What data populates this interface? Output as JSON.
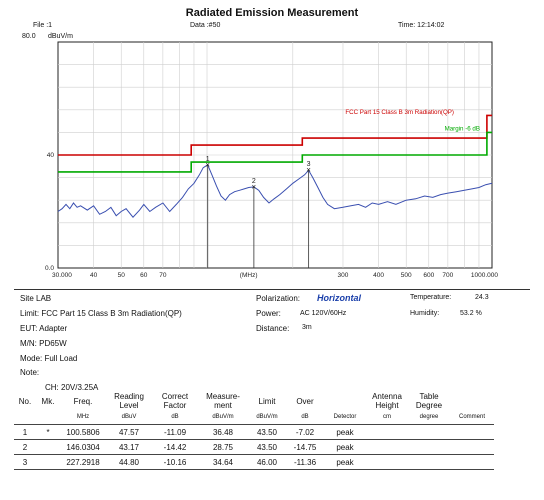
{
  "header": {
    "title": "Radiated Emission Measurement",
    "file": "File :1",
    "data": "Data :#50",
    "time": "Time: 12:14:02",
    "ytop": "80.0",
    "yunit": "dBuV/m"
  },
  "chart_data": {
    "type": "line",
    "title": "Radiated Emission Measurement",
    "xlabel": "(MHz)",
    "ylabel": "dBuV/m",
    "xscale": "log",
    "xlim": [
      30,
      1000
    ],
    "ylim": [
      0,
      80
    ],
    "ytick_labels": [
      "0.0",
      "40",
      "80.0"
    ],
    "xtick_labels": [
      "30.000",
      "40",
      "50",
      "60",
      "70",
      "(MHz)",
      "300",
      "400",
      "500",
      "600",
      "700",
      "1000.000"
    ],
    "xtick_values": [
      30,
      40,
      50,
      60,
      70,
      140,
      300,
      400,
      500,
      600,
      700,
      1000
    ],
    "limit_line": {
      "name": "FCC Part 15  Class B 3m Radiation(QP)",
      "color": "#cc0000",
      "points": [
        [
          30,
          40
        ],
        [
          88,
          40
        ],
        [
          88,
          43.5
        ],
        [
          216,
          43.5
        ],
        [
          216,
          46
        ],
        [
          960,
          46
        ],
        [
          960,
          54
        ],
        [
          1000,
          54
        ]
      ]
    },
    "margin_line": {
      "name": "Margin -6 dB",
      "color": "#00aa00",
      "points": [
        [
          30,
          34
        ],
        [
          88,
          34
        ],
        [
          88,
          37.5
        ],
        [
          216,
          37.5
        ],
        [
          216,
          40
        ],
        [
          960,
          40
        ],
        [
          960,
          48
        ],
        [
          1000,
          48
        ]
      ]
    },
    "trace": {
      "color": "#3a4fb0",
      "x": [
        30,
        31,
        32,
        33,
        34,
        35,
        36,
        38,
        40,
        42,
        44,
        46,
        48,
        50,
        52,
        55,
        58,
        60,
        63,
        66,
        70,
        74,
        78,
        82,
        86,
        90,
        94,
        97,
        100.58,
        104,
        108,
        112,
        116,
        120,
        125,
        130,
        135,
        140,
        146.03,
        152,
        158,
        165,
        172,
        180,
        190,
        200,
        210,
        220,
        227.29,
        235,
        245,
        255,
        265,
        280,
        300,
        320,
        340,
        360,
        380,
        400,
        430,
        460,
        500,
        540,
        580,
        620,
        660,
        700,
        750,
        800,
        850,
        900,
        950,
        1000
      ],
      "y": [
        20,
        21,
        22.5,
        21,
        23,
        21.5,
        22,
        20.5,
        22,
        19,
        20,
        21.5,
        18.5,
        20,
        21,
        18,
        20.5,
        22.5,
        20,
        21.5,
        23,
        20,
        22.5,
        25,
        28,
        30,
        33,
        35.5,
        36.5,
        33,
        29,
        25.5,
        24,
        26,
        27,
        27.5,
        28,
        28.5,
        28.7,
        27.5,
        25,
        23,
        24.5,
        26,
        28,
        30,
        31.5,
        33,
        34.6,
        32,
        28.5,
        25,
        22.5,
        21,
        21.5,
        22,
        22.5,
        21.5,
        23,
        22.5,
        23.5,
        22.5,
        24,
        24.5,
        25.5,
        25,
        26,
        26.5,
        27,
        27.5,
        28,
        28.5,
        29.5,
        30
      ]
    },
    "markers": [
      {
        "label": "1",
        "x": 100.5806,
        "y": 36.48
      },
      {
        "label": "2",
        "x": 146.0304,
        "y": 28.75
      },
      {
        "label": "3",
        "x": 227.2918,
        "y": 34.64
      }
    ],
    "grid": true,
    "legend": "top-right"
  },
  "info": {
    "site": "Site LAB",
    "limit": "Limit: FCC Part 15  Class B 3m Radiation(QP)",
    "eut": "EUT:  Adapter",
    "mn": "M/N:  PD65W",
    "mode": "Mode:  Full Load",
    "note": "Note:",
    "ch": "CH:  20V/3.25A",
    "polarization_label": "Polarization:",
    "polarization_value": "Horizontal",
    "power_label": "Power:",
    "power_value": "AC 120V/60Hz",
    "distance_label": "Distance:",
    "distance_value": "3m",
    "temperature_label": "Temperature:",
    "temperature_value": "24.3",
    "humidity_label": "Humidity:",
    "humidity_value": "53.2 %"
  },
  "table": {
    "headers": [
      "No.",
      "Mk.",
      "Freq.",
      "Reading\nLevel",
      "Correct\nFactor",
      "Measure-\nment",
      "Limit",
      "Over",
      "",
      "Antenna\nHeight",
      "Table\nDegree",
      ""
    ],
    "units": [
      "",
      "",
      "MHz",
      "dBuV",
      "dB",
      "dBuV/m",
      "dBuV/m",
      "dB",
      "Detector",
      "cm",
      "degree",
      "Comment"
    ],
    "rows": [
      [
        "1",
        "*",
        "100.5806",
        "47.57",
        "-11.09",
        "36.48",
        "43.50",
        "-7.02",
        "peak",
        "",
        "",
        ""
      ],
      [
        "2",
        "",
        "146.0304",
        "43.17",
        "-14.42",
        "28.75",
        "43.50",
        "-14.75",
        "peak",
        "",
        "",
        ""
      ],
      [
        "3",
        "",
        "227.2918",
        "44.80",
        "-10.16",
        "34.64",
        "46.00",
        "-11.36",
        "peak",
        "",
        "",
        ""
      ]
    ]
  }
}
